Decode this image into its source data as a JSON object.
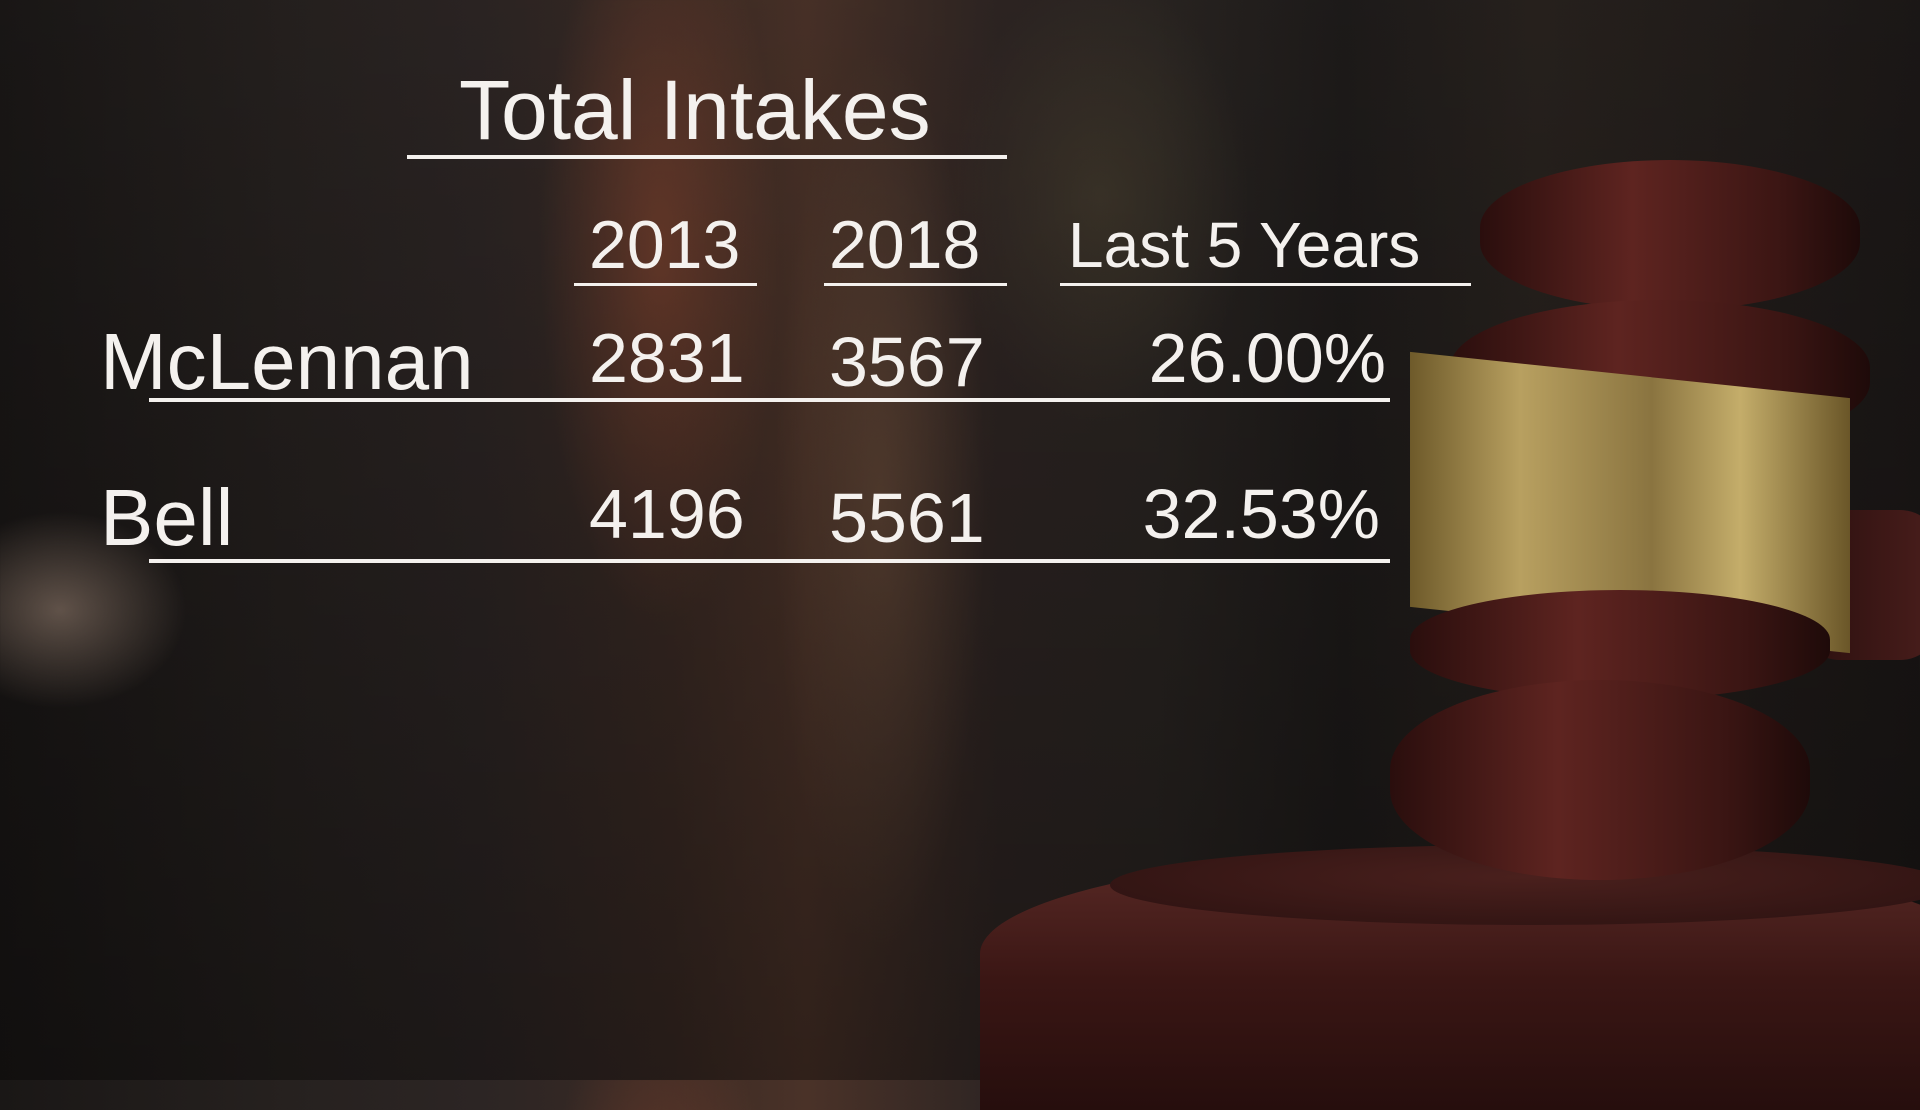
{
  "chart_data": {
    "type": "table",
    "title": "Total Intakes",
    "columns": [
      "2013",
      "2018",
      "Last 5 Years"
    ],
    "rows": [
      {
        "label": "McLennan",
        "values": [
          "2831",
          "3567",
          "26.00%"
        ]
      },
      {
        "label": "Bell",
        "values": [
          "4196",
          "5561",
          "32.53%"
        ]
      }
    ]
  },
  "colors": {
    "text": "#f4f1ee",
    "background": "#231d1b",
    "gavel": "#4a1c1a",
    "band": "#b8a060"
  }
}
